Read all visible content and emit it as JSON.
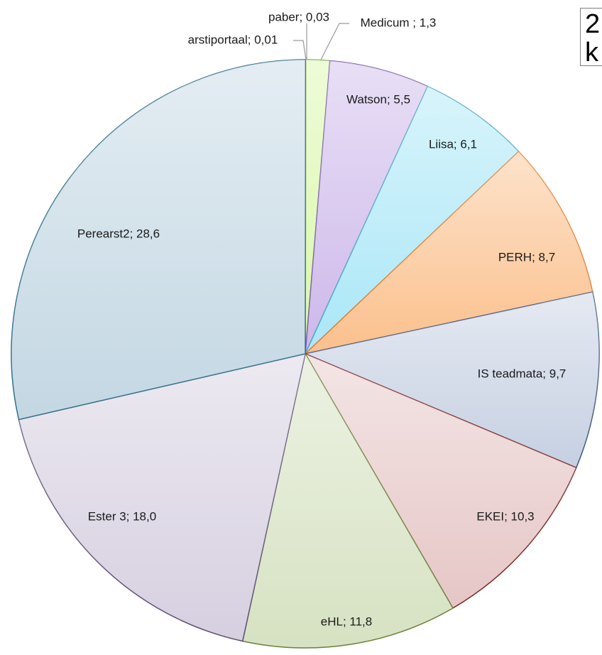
{
  "chart_data": {
    "type": "pie",
    "title_fragment": "2\nk",
    "start_angle_deg": 0,
    "direction": "clockwise",
    "decimal_separator": ",",
    "slices": [
      {
        "label": "arstiportaal",
        "value": 0.01,
        "value_text": "0,01",
        "color": "#6e9bbd",
        "outline": "#2f5f7f"
      },
      {
        "label": "paber",
        "value": 0.03,
        "value_text": "0,03",
        "color": "#b9b9b9",
        "outline": "#7f7f7f"
      },
      {
        "label": "Medicum ",
        "value": 1.3,
        "value_text": "1,3",
        "color": "#d9f7a8",
        "outline": "#7ea042"
      },
      {
        "label": "Watson",
        "value": 5.5,
        "value_text": "5,5",
        "color": "#cdb8ea",
        "outline": "#7d5da8"
      },
      {
        "label": "Liisa",
        "value": 6.1,
        "value_text": "6,1",
        "color": "#a9e7f7",
        "outline": "#4aa7c6"
      },
      {
        "label": "PERH",
        "value": 8.7,
        "value_text": "8,7",
        "color": "#fbc08c",
        "outline": "#e07b2a"
      },
      {
        "label": "IS teadmata",
        "value": 9.7,
        "value_text": "9,7",
        "color": "#c6d0e2",
        "outline": "#3c5382"
      },
      {
        "label": "EKEI",
        "value": 10.3,
        "value_text": "10,3",
        "color": "#e6c6c6",
        "outline": "#7b2323"
      },
      {
        "label": "eHL",
        "value": 11.8,
        "value_text": "11,8",
        "color": "#d6e2c2",
        "outline": "#6b7f3a"
      },
      {
        "label": "Ester 3",
        "value": 18.0,
        "value_text": "18,0",
        "color": "#d6cfe0",
        "outline": "#5d4f73"
      },
      {
        "label": "Perearst2",
        "value": 28.6,
        "value_text": "28,6",
        "color": "#c3d7e3",
        "outline": "#2f6e86"
      }
    ]
  }
}
